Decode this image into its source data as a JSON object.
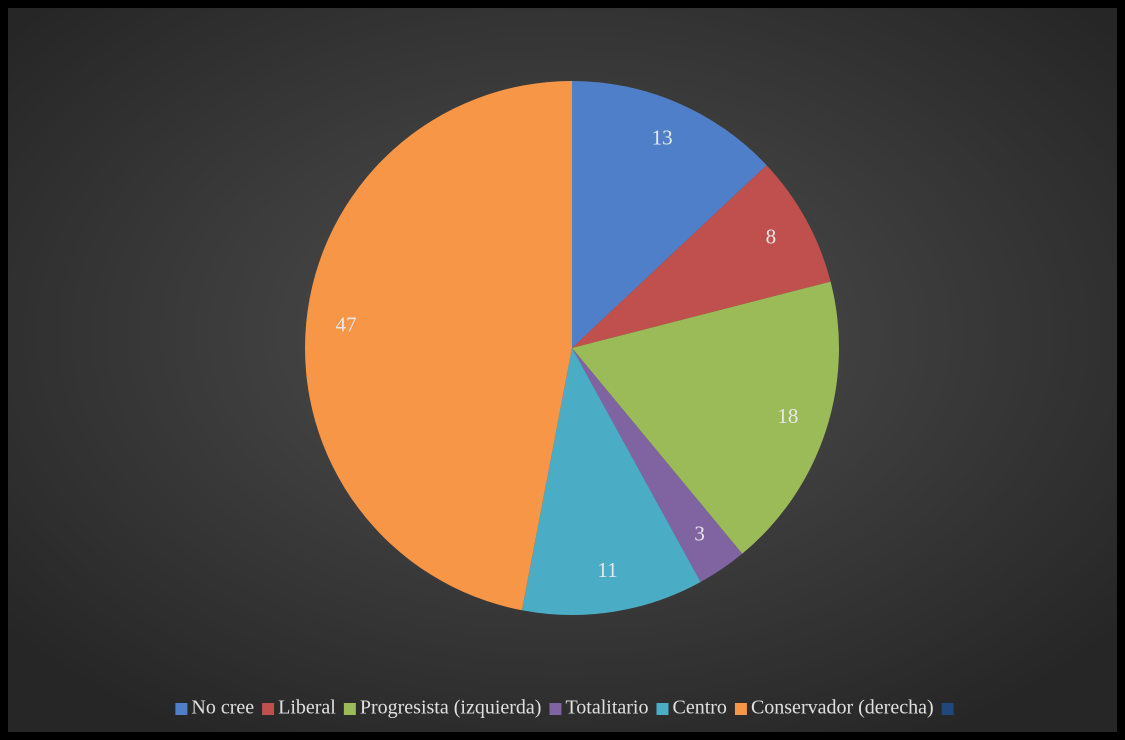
{
  "chart_data": {
    "type": "pie",
    "categories": [
      "No cree",
      "Liberal",
      "Progresista (izquierda)",
      "Totalitario",
      "Centro",
      "Conservador (derecha)",
      null
    ],
    "values": [
      13,
      8,
      18,
      3,
      11,
      47,
      null
    ],
    "colors": [
      "#4f7fc8",
      "#c0504d",
      "#9bbb59",
      "#8064a2",
      "#4bacc6",
      "#f79646",
      "#1f497d"
    ],
    "legend": "bottom"
  }
}
